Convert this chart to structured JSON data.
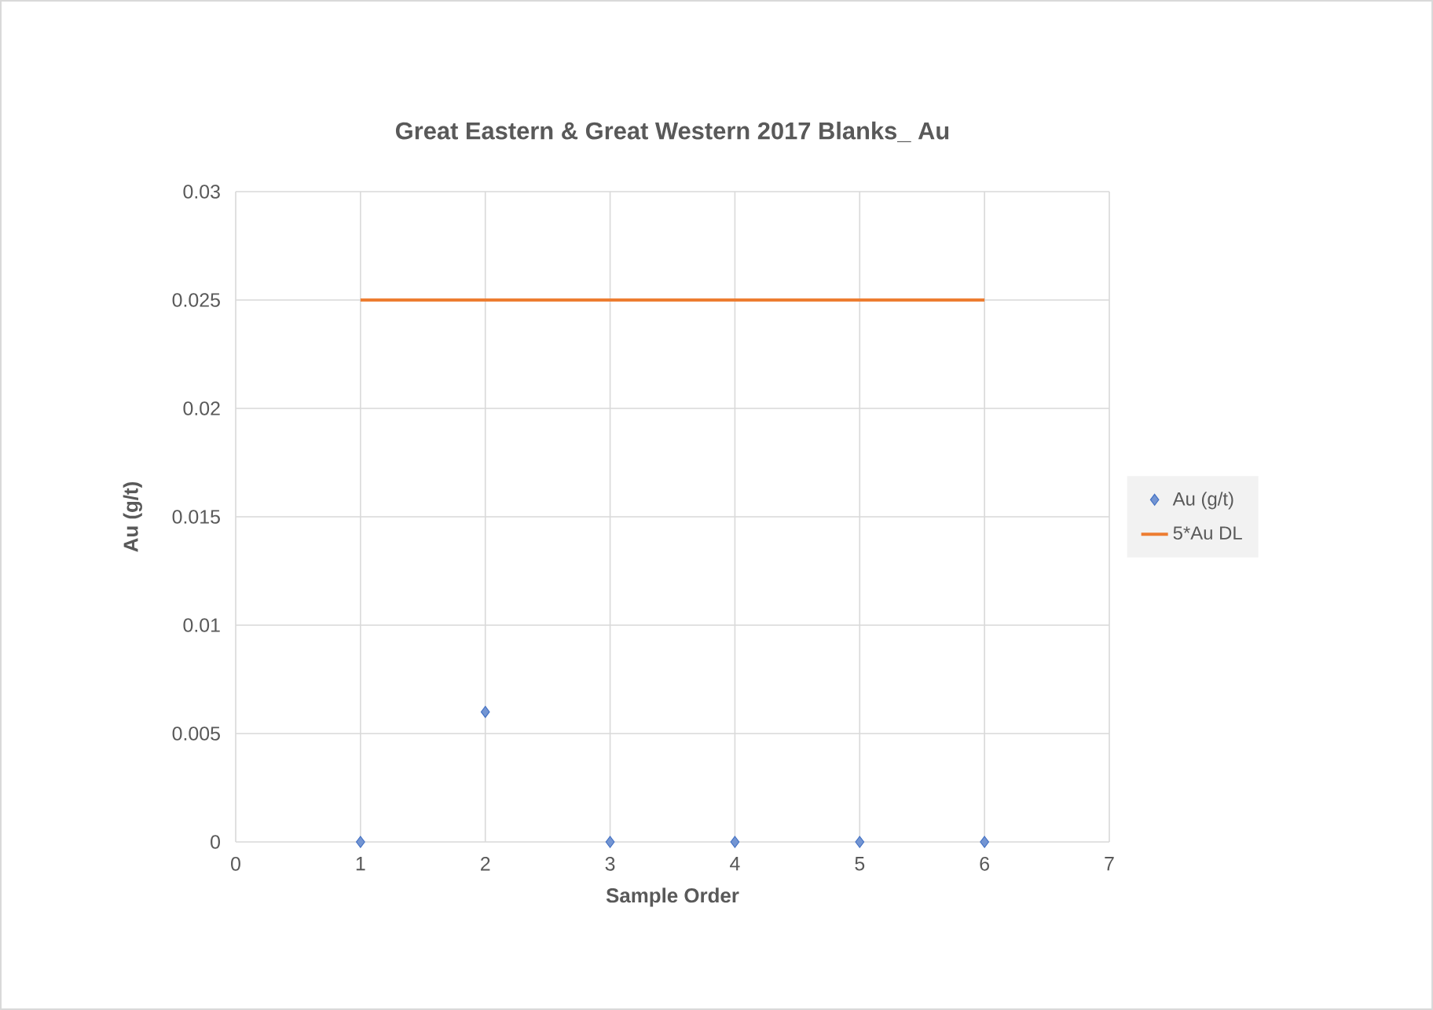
{
  "chart_data": {
    "type": "scatter",
    "title": "Great Eastern & Great Western 2017 Blanks_ Au",
    "xlabel": "Sample Order",
    "ylabel": "Au (g/t)",
    "series": [
      {
        "name": "Au (g/t)",
        "marker": "diamond",
        "color": "#4472c4",
        "x": [
          1,
          2,
          3,
          4,
          5,
          6
        ],
        "values": [
          0,
          0.006,
          0,
          0,
          0,
          0
        ]
      },
      {
        "name": "5*Au DL",
        "type": "line",
        "marker": "none",
        "line_style": "solid",
        "color": "#ed7d31",
        "x": [
          1,
          2,
          3,
          4,
          5,
          6
        ],
        "values": [
          0.025,
          0.025,
          0.025,
          0.025,
          0.025,
          0.025
        ]
      }
    ],
    "xlim": [
      0,
      7
    ],
    "xticks": [
      0,
      1,
      2,
      3,
      4,
      5,
      6,
      7
    ],
    "ylim": [
      0,
      0.03
    ],
    "yticks": [
      0,
      0.005,
      0.01,
      0.015,
      0.02,
      0.025,
      0.03
    ],
    "grid": true,
    "legend": "right"
  }
}
